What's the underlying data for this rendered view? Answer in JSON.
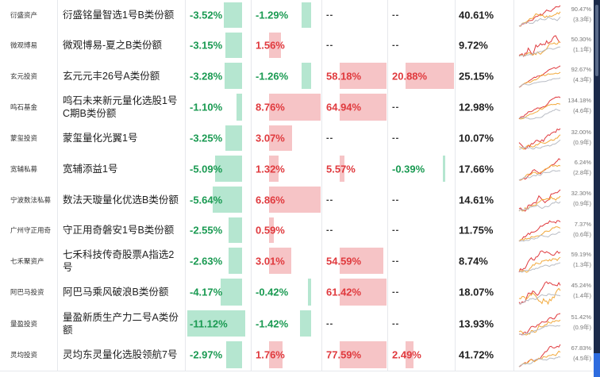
{
  "colors": {
    "positive": "#e03a3e",
    "negative": "#1a9a52",
    "bar_positive": "#f6c4c6",
    "bar_negative": "#b5e6d0"
  },
  "rows": [
    {
      "inst": "衍盛资产",
      "name": "衍盛铭量智选1号B类份额",
      "r1": "-3.52%",
      "r2": "-1.29%",
      "r3": "--",
      "r4": "--",
      "total": "40.61%",
      "spark_value": "90.47%",
      "spark_period": "(3.3年)"
    },
    {
      "inst": "微观博易",
      "name": "微观博易-夏之B类份额",
      "r1": "-3.15%",
      "r2": "1.56%",
      "r3": "--",
      "r4": "--",
      "total": "9.72%",
      "spark_value": "50.30%",
      "spark_period": "(1.1年)"
    },
    {
      "inst": "玄元投资",
      "name": "玄元元丰26号A类份额",
      "r1": "-3.28%",
      "r2": "-1.26%",
      "r3": "58.18%",
      "r4": "20.88%",
      "total": "25.15%",
      "spark_value": "92.67%",
      "spark_period": "(4.3年)"
    },
    {
      "inst": "鸣石基金",
      "name": "鸣石未来新元量化选股1号C期B类份额",
      "r1": "-1.10%",
      "r2": "8.76%",
      "r3": "64.94%",
      "r4": "--",
      "total": "12.98%",
      "spark_value": "134.18%",
      "spark_period": "(4.6年)"
    },
    {
      "inst": "蒙玺投资",
      "name": "蒙玺量化光翼1号",
      "r1": "-3.25%",
      "r2": "3.07%",
      "r3": "--",
      "r4": "--",
      "total": "10.07%",
      "spark_value": "32.00%",
      "spark_period": "(0.9年)"
    },
    {
      "inst": "宽辅私募",
      "name": "宽辅添益1号",
      "r1": "-5.09%",
      "r2": "1.32%",
      "r3": "5.57%",
      "r4": "-0.39%",
      "total": "17.66%",
      "spark_value": "6.24%",
      "spark_period": "(2.8年)"
    },
    {
      "inst": "宁波数法私募",
      "name": "数法天璇量化优选B类份额",
      "r1": "-5.64%",
      "r2": "6.86%",
      "r3": "--",
      "r4": "--",
      "total": "14.61%",
      "spark_value": "32.30%",
      "spark_period": "(0.9年)"
    },
    {
      "inst": "广州守正用奇",
      "name": "守正用奇磐安1号B类份额",
      "r1": "-2.55%",
      "r2": "0.59%",
      "r3": "--",
      "r4": "--",
      "total": "11.75%",
      "spark_value": "7.37%",
      "spark_period": "(0.6年)"
    },
    {
      "inst": "七禾聚资产",
      "name": "七禾科技传奇股票A指选2号",
      "r1": "-2.63%",
      "r2": "3.01%",
      "r3": "54.59%",
      "r4": "--",
      "total": "8.74%",
      "spark_value": "59.19%",
      "spark_period": "(1.3年)"
    },
    {
      "inst": "阿巴马投资",
      "name": "阿巴马乘风破浪B类份额",
      "r1": "-4.17%",
      "r2": "-0.42%",
      "r3": "61.42%",
      "r4": "--",
      "total": "18.07%",
      "spark_value": "45.24%",
      "spark_period": "(1.4年)"
    },
    {
      "inst": "量盈投资",
      "name": "量盈新质生产力二号A类份额",
      "r1": "-11.12%",
      "r2": "-1.42%",
      "r3": "--",
      "r4": "--",
      "total": "13.93%",
      "spark_value": "51.42%",
      "spark_period": "(0.9年)"
    },
    {
      "inst": "灵均投资",
      "name": "灵均东灵量化选股领航7号",
      "r1": "-2.97%",
      "r2": "1.76%",
      "r3": "77.59%",
      "r4": "2.49%",
      "total": "41.72%",
      "spark_value": "67.83%",
      "spark_period": "(4.5年)"
    }
  ]
}
